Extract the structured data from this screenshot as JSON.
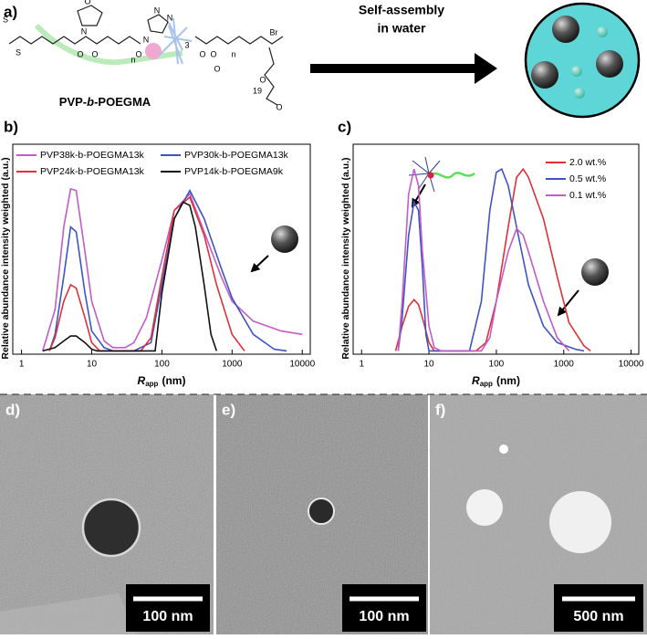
{
  "panel_a": {
    "label": "a)",
    "atoms": [
      "S",
      "S",
      "O",
      "N",
      "O",
      "O",
      "O",
      "N",
      "N",
      "N",
      "3",
      "O",
      "O",
      "n",
      "n",
      "Br",
      "O",
      "O",
      "19",
      "O"
    ],
    "name": {
      "prefix": "PVP-",
      "italic": "b",
      "suffix": "-POEGMA"
    },
    "arrow_text": [
      "Self-assembly",
      "in water"
    ]
  },
  "chart_data": [
    {
      "type": "line",
      "label": "b)",
      "ylabel": "Relative abundance intensity weighted (a.u.)",
      "xlabel": {
        "symbol": "R",
        "subscript": "app",
        "unit": "(nm)"
      },
      "xlog": true,
      "xlim": [
        0.75,
        13000
      ],
      "xticks": [
        1,
        10,
        100,
        1000,
        10000
      ],
      "ylim": [
        -0.02,
        1.25
      ],
      "series": [
        {
          "name": "PVP38k-b-POEGMA13k",
          "color": "#c25cc8",
          "x": [
            2,
            3,
            4,
            5,
            6,
            8,
            10,
            15,
            20,
            30,
            40,
            60,
            100,
            150,
            250,
            400,
            700,
            1000,
            2000,
            5000,
            10000
          ],
          "values": [
            0,
            0.25,
            0.75,
            0.98,
            0.97,
            0.6,
            0.3,
            0.06,
            0.02,
            0.02,
            0.05,
            0.2,
            0.55,
            0.85,
            0.95,
            0.72,
            0.45,
            0.3,
            0.18,
            0.12,
            0.1
          ]
        },
        {
          "name": "PVP30k-b-POEGMA13k",
          "color": "#3d55c4",
          "x": [
            2.5,
            3,
            4,
            5,
            6,
            8,
            10,
            15,
            20,
            40,
            70,
            100,
            150,
            250,
            400,
            700,
            1000,
            2000,
            4000,
            6000
          ],
          "values": [
            0,
            0.1,
            0.45,
            0.75,
            0.72,
            0.35,
            0.12,
            0.02,
            0,
            0,
            0.05,
            0.4,
            0.8,
            0.97,
            0.8,
            0.5,
            0.32,
            0.1,
            0.01,
            0
          ]
        },
        {
          "name": "PVP24k-b-POEGMA13k",
          "color": "#e03038",
          "x": [
            2.5,
            3,
            4,
            5,
            6,
            8,
            10,
            13,
            50,
            70,
            100,
            150,
            250,
            400,
            600,
            1000,
            1500
          ],
          "values": [
            0,
            0.08,
            0.3,
            0.4,
            0.38,
            0.2,
            0.05,
            0,
            0,
            0.08,
            0.45,
            0.85,
            0.93,
            0.7,
            0.4,
            0.1,
            0
          ]
        },
        {
          "name": "PVP14k-b-POEGMA9k",
          "color": "#111111",
          "x": [
            2,
            3,
            4,
            5,
            6,
            8,
            10,
            12,
            80,
            100,
            150,
            200,
            250,
            300,
            400,
            500,
            600
          ],
          "values": [
            0,
            0.02,
            0.06,
            0.09,
            0.09,
            0.05,
            0.01,
            0,
            0,
            0.35,
            0.8,
            0.9,
            0.88,
            0.75,
            0.4,
            0.1,
            0
          ]
        }
      ]
    },
    {
      "type": "line",
      "label": "c)",
      "ylabel": "Relative abundance intensity weighted (a.u.)",
      "xlabel": {
        "symbol": "R",
        "subscript": "app",
        "unit": "(nm)"
      },
      "xlog": true,
      "xlim": [
        0.75,
        13000
      ],
      "xticks": [
        1,
        10,
        100,
        1000,
        10000
      ],
      "ylim": [
        -0.02,
        1.25
      ],
      "series": [
        {
          "name": "2.0 wt.%",
          "color": "#e03038",
          "x": [
            3.2,
            4,
            5,
            6,
            7,
            8,
            10,
            12,
            50,
            70,
            100,
            150,
            200,
            250,
            300,
            500,
            800,
            1200,
            2000,
            2500
          ],
          "values": [
            0,
            0.15,
            0.27,
            0.31,
            0.28,
            0.2,
            0.05,
            0,
            0,
            0.05,
            0.3,
            0.75,
            1.05,
            1.1,
            1.05,
            0.8,
            0.45,
            0.17,
            0.03,
            0
          ]
        },
        {
          "name": "0.5 wt.%",
          "color": "#3d55c4",
          "x": [
            3.5,
            4,
            5,
            6,
            7,
            8,
            9,
            10,
            40,
            60,
            80,
            100,
            120,
            150,
            200,
            300,
            500,
            800,
            1500,
            2000
          ],
          "values": [
            0,
            0.2,
            0.7,
            0.9,
            0.85,
            0.5,
            0.1,
            0,
            0,
            0.3,
            0.85,
            1.08,
            1.1,
            1.0,
            0.75,
            0.4,
            0.15,
            0.05,
            0.01,
            0
          ]
        },
        {
          "name": "0.1 wt.%",
          "color": "#c25cc8",
          "x": [
            3.5,
            4,
            5,
            6,
            7,
            8,
            10,
            12,
            15,
            60,
            80,
            100,
            150,
            200,
            250,
            300,
            500,
            800,
            1200
          ],
          "values": [
            0,
            0.3,
            0.95,
            1.1,
            1.0,
            0.6,
            0.15,
            0.02,
            0,
            0,
            0.08,
            0.3,
            0.6,
            0.74,
            0.7,
            0.6,
            0.3,
            0.08,
            0
          ]
        }
      ]
    }
  ],
  "micrographs": [
    {
      "label": "d)",
      "scale_bar": "100 nm"
    },
    {
      "label": "e)",
      "scale_bar": "100 nm"
    },
    {
      "label": "f)",
      "scale_bar": "500 nm"
    }
  ]
}
